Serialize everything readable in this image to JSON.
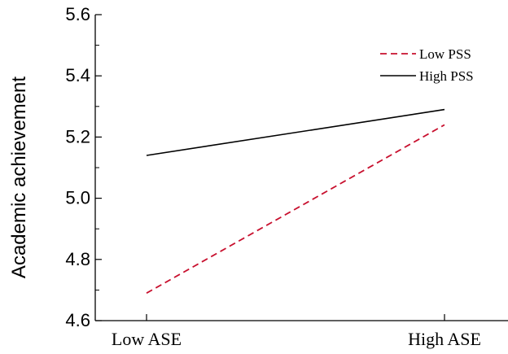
{
  "chart_data": {
    "type": "line",
    "title": "",
    "xlabel": "",
    "ylabel": "Academic achievement",
    "categories": [
      "Low ASE",
      "High ASE"
    ],
    "ylim": [
      4.6,
      5.6
    ],
    "yticks": [
      "4.6",
      "4.8",
      "5.0",
      "5.2",
      "5.4",
      "5.6"
    ],
    "grid": false,
    "legend_position": "top-right",
    "series": [
      {
        "name": "Low PSS",
        "values": [
          4.69,
          5.24
        ],
        "color": "#c8102e",
        "style": "dashed"
      },
      {
        "name": "High PSS",
        "values": [
          5.14,
          5.29
        ],
        "color": "#000000",
        "style": "solid"
      }
    ]
  }
}
